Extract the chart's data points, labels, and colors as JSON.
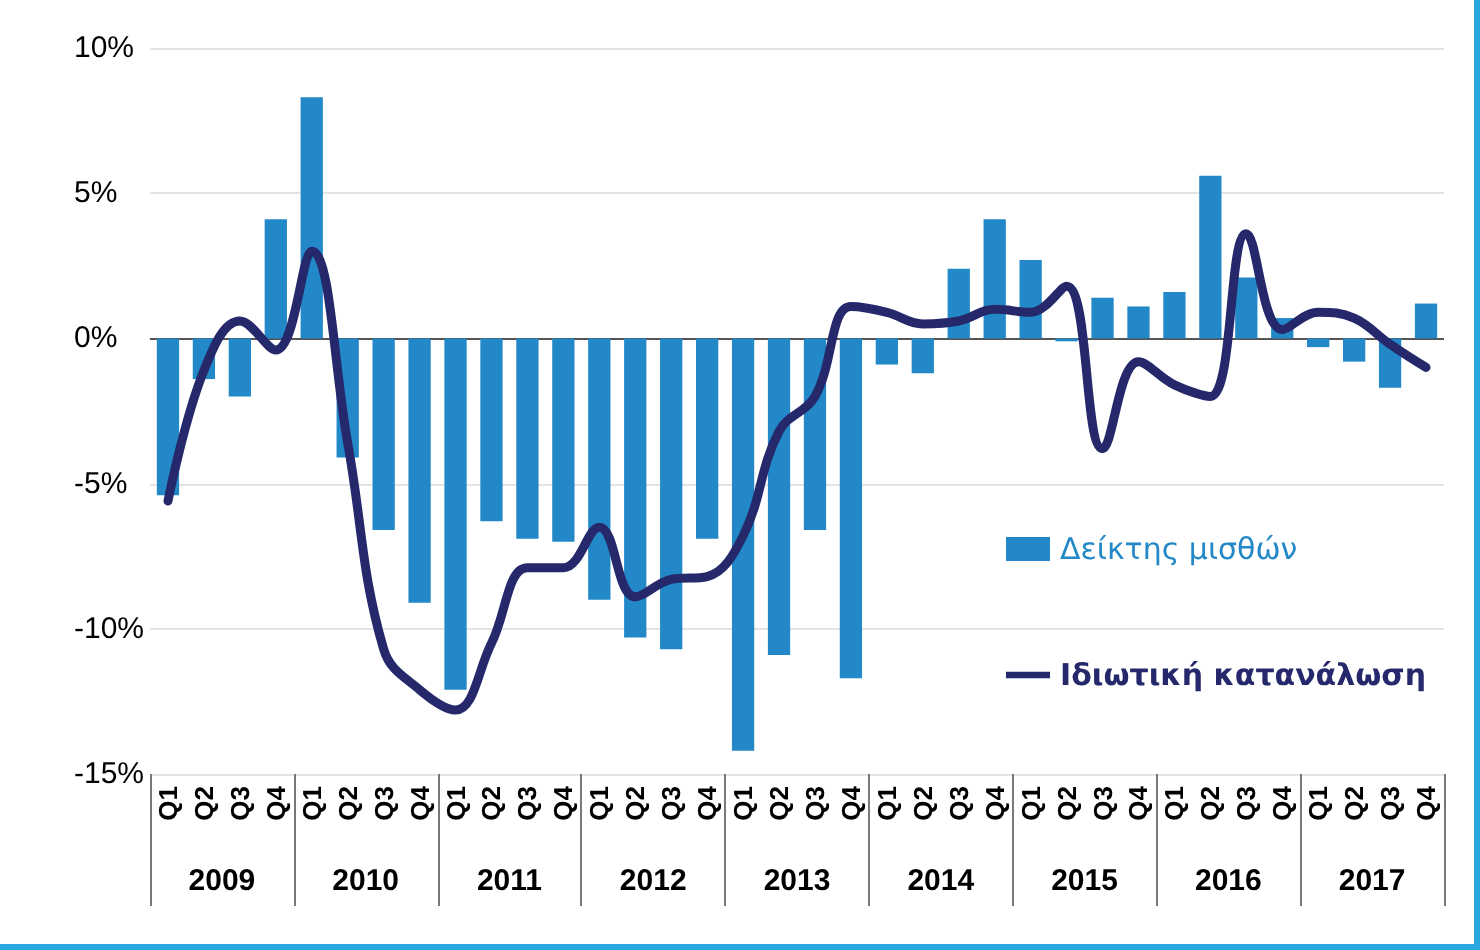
{
  "chart_data": {
    "type": "bar",
    "categories": [
      "Q1",
      "Q2",
      "Q3",
      "Q4",
      "Q1",
      "Q2",
      "Q3",
      "Q4",
      "Q1",
      "Q2",
      "Q3",
      "Q4",
      "Q1",
      "Q2",
      "Q3",
      "Q4",
      "Q1",
      "Q2",
      "Q3",
      "Q4",
      "Q1",
      "Q2",
      "Q3",
      "Q4",
      "Q1",
      "Q2",
      "Q3",
      "Q4",
      "Q1",
      "Q2",
      "Q3",
      "Q4",
      "Q1",
      "Q2",
      "Q3",
      "Q4"
    ],
    "series": [
      {
        "name": "Δείκτης μισθών",
        "color": "#2388c8",
        "values": [
          -5.4,
          -1.4,
          -2.0,
          4.1,
          8.3,
          -4.1,
          -6.6,
          -9.1,
          -12.1,
          -6.3,
          -6.9,
          -7.0,
          -9.0,
          -10.3,
          -10.7,
          -6.9,
          -14.2,
          -10.9,
          -6.6,
          -11.7,
          -0.9,
          -1.2,
          2.4,
          4.1,
          2.7,
          -0.1,
          1.4,
          1.1,
          1.6,
          5.6,
          2.1,
          0.7,
          -0.3,
          -0.8,
          -1.7,
          1.2
        ]
      },
      {
        "name": "Ιδιωτική κατανάλωση",
        "type": "line",
        "color": "#25296b",
        "values": [
          -5.6,
          -1.1,
          0.6,
          -0.4,
          3.0,
          -3.6,
          -10.7,
          -12.1,
          -12.8,
          -10.5,
          -7.9,
          -7.9,
          -6.5,
          -8.9,
          -8.3,
          -8.2,
          -6.8,
          -3.2,
          -2.0,
          1.1,
          0.9,
          0.5,
          0.6,
          1.0,
          0.9,
          1.8,
          -3.8,
          -0.8,
          -1.6,
          -2.0,
          3.6,
          0.3,
          0.9,
          0.7,
          -0.2,
          -1.0
        ]
      }
    ],
    "annotations": [
      "2009",
      "2010",
      "2011",
      "2012",
      "2013",
      "2014",
      "2015",
      "2016",
      "2017"
    ],
    "ylim": [
      -15,
      10
    ],
    "yticks": [
      {
        "value": -15,
        "label": "-15%"
      },
      {
        "value": -10,
        "label": "-10%"
      },
      {
        "value": -5,
        "label": "-5%"
      },
      {
        "value": 0,
        "label": "0%"
      },
      {
        "value": 5,
        "label": "5%"
      },
      {
        "value": 10,
        "label": "10%"
      }
    ],
    "grid": "y",
    "legend": "right",
    "marker": "none",
    "line_style": "solid"
  }
}
